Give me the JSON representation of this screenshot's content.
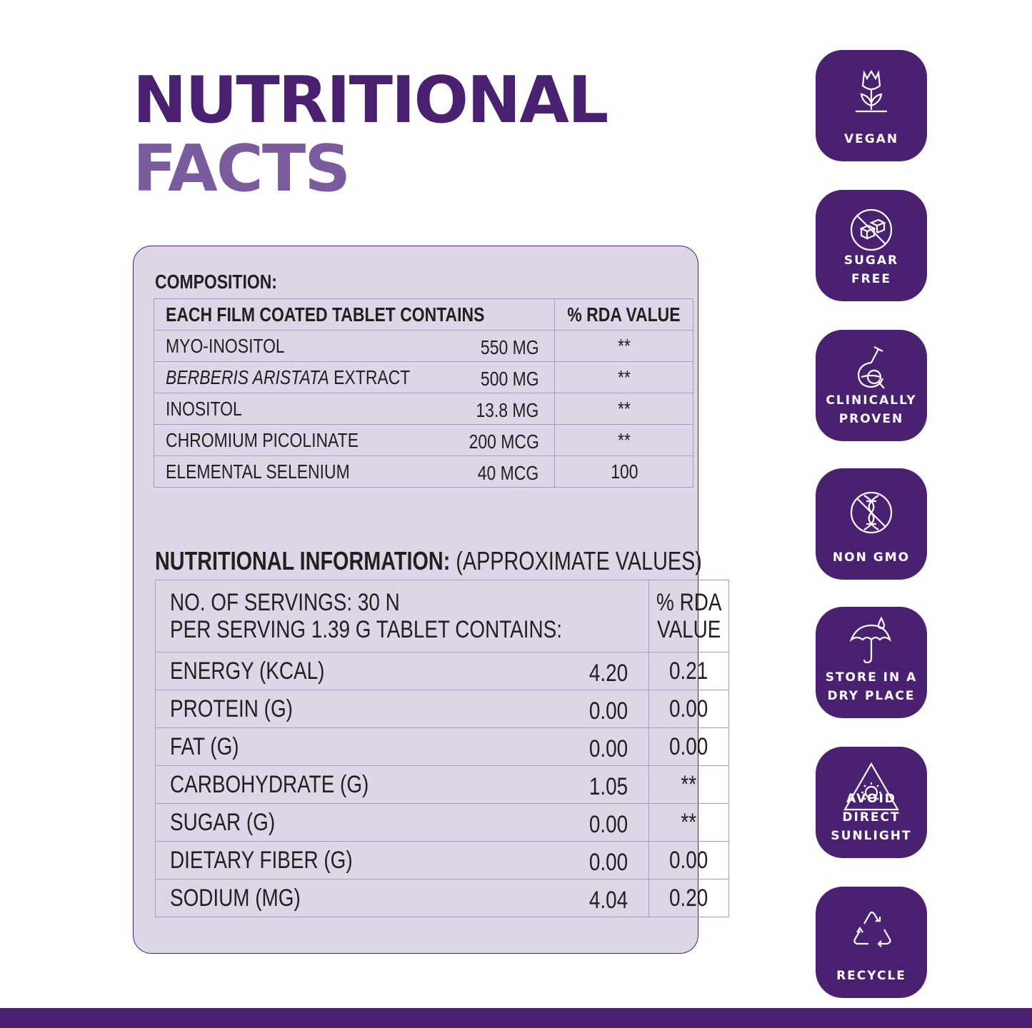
{
  "title": {
    "line1": "NUTRITIONAL",
    "line2": "FACTS"
  },
  "composition": {
    "label": "COMPOSITION:",
    "headers": [
      "EACH FILM COATED TABLET CONTAINS",
      "% RDA VALUE"
    ],
    "rows": [
      {
        "name": "MYO-INOSITOL",
        "name_italic": "",
        "amount": "550 MG",
        "rda": "**"
      },
      {
        "name": " EXTRACT",
        "name_italic": "BERBERIS ARISTATA",
        "amount": "500 MG",
        "rda": "**"
      },
      {
        "name": "INOSITOL",
        "name_italic": "",
        "amount": "13.8 MG",
        "rda": "**"
      },
      {
        "name": "CHROMIUM PICOLINATE",
        "name_italic": "",
        "amount": "200 MCG",
        "rda": "**"
      },
      {
        "name": "ELEMENTAL SELENIUM",
        "name_italic": "",
        "amount": "40 MCG",
        "rda": "100"
      }
    ]
  },
  "nutrition": {
    "label_bold": "NUTRITIONAL INFORMATION:",
    "label_light": " (APPROXIMATE VALUES)",
    "header_line1": "NO. OF SERVINGS: 30 N",
    "header_line2": "PER SERVING 1.39 G TABLET CONTAINS:",
    "rda_header_line1": "% RDA",
    "rda_header_line2": "VALUE",
    "rows": [
      {
        "name": "ENERGY (KCAL)",
        "value": "4.20",
        "rda": "0.21"
      },
      {
        "name": "PROTEIN (G)",
        "value": "0.00",
        "rda": "0.00"
      },
      {
        "name": "FAT (G)",
        "value": "0.00",
        "rda": "0.00"
      },
      {
        "name": "CARBOHYDRATE (G)",
        "value": "1.05",
        "rda": "**"
      },
      {
        "name": "SUGAR (G)",
        "value": "0.00",
        "rda": "**"
      },
      {
        "name": "DIETARY FIBER (G)",
        "value": "0.00",
        "rda": "0.00"
      },
      {
        "name": "SODIUM (MG)",
        "value": "4.04",
        "rda": "0.20"
      }
    ]
  },
  "badges": [
    {
      "icon": "vegan-icon",
      "line1": "VEGAN",
      "line2": ""
    },
    {
      "icon": "sugar-free-icon",
      "line1": "SUGAR",
      "line2": "FREE"
    },
    {
      "icon": "clinically-proven-icon",
      "line1": "CLINICALLY",
      "line2": "PROVEN"
    },
    {
      "icon": "non-gmo-icon",
      "line1": "NON GMO",
      "line2": ""
    },
    {
      "icon": "umbrella-icon",
      "line1": "STORE IN A",
      "line2": "DRY PLACE"
    },
    {
      "icon": "sunlight-warning-icon",
      "line1": "AVOID DIRECT",
      "line2": "SUNLIGHT"
    },
    {
      "icon": "recycle-icon",
      "line1": "RECYCLE",
      "line2": ""
    }
  ],
  "colors": {
    "brand": "#4a2171",
    "brand_light": "#7a5b9e",
    "panel": "#ddd6e6",
    "text": "#231f20"
  }
}
